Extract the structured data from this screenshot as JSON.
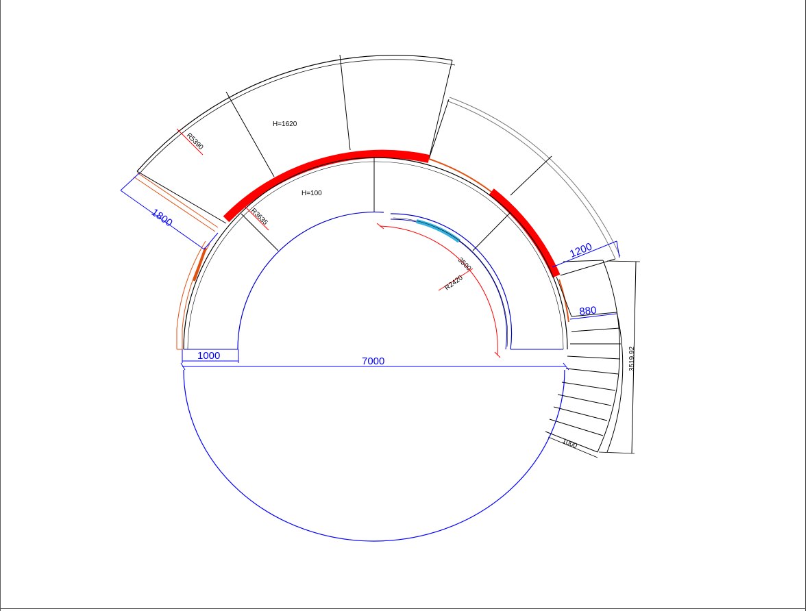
{
  "drawing": {
    "dimensions": {
      "outer_radius": "R5390",
      "wall_radius": "R3635",
      "inner_radius": "R2420",
      "inner_arc": "3500",
      "diameter": "7000",
      "left_step": "1000",
      "tread_width": "1800",
      "upper_right_width": "1200",
      "stair_width": "880",
      "stair_run": "3519.92",
      "bottom_step": "1000"
    },
    "labels": {
      "height_outer": "H=1620",
      "height_inner": "H=100"
    }
  },
  "colors": {
    "dimension": "#0000ff",
    "radius_line": "#ff0000",
    "coping": "#ff0000",
    "accent_orange": "#e05010",
    "inner_highlight": "#33b0e0",
    "line": "#000000"
  }
}
